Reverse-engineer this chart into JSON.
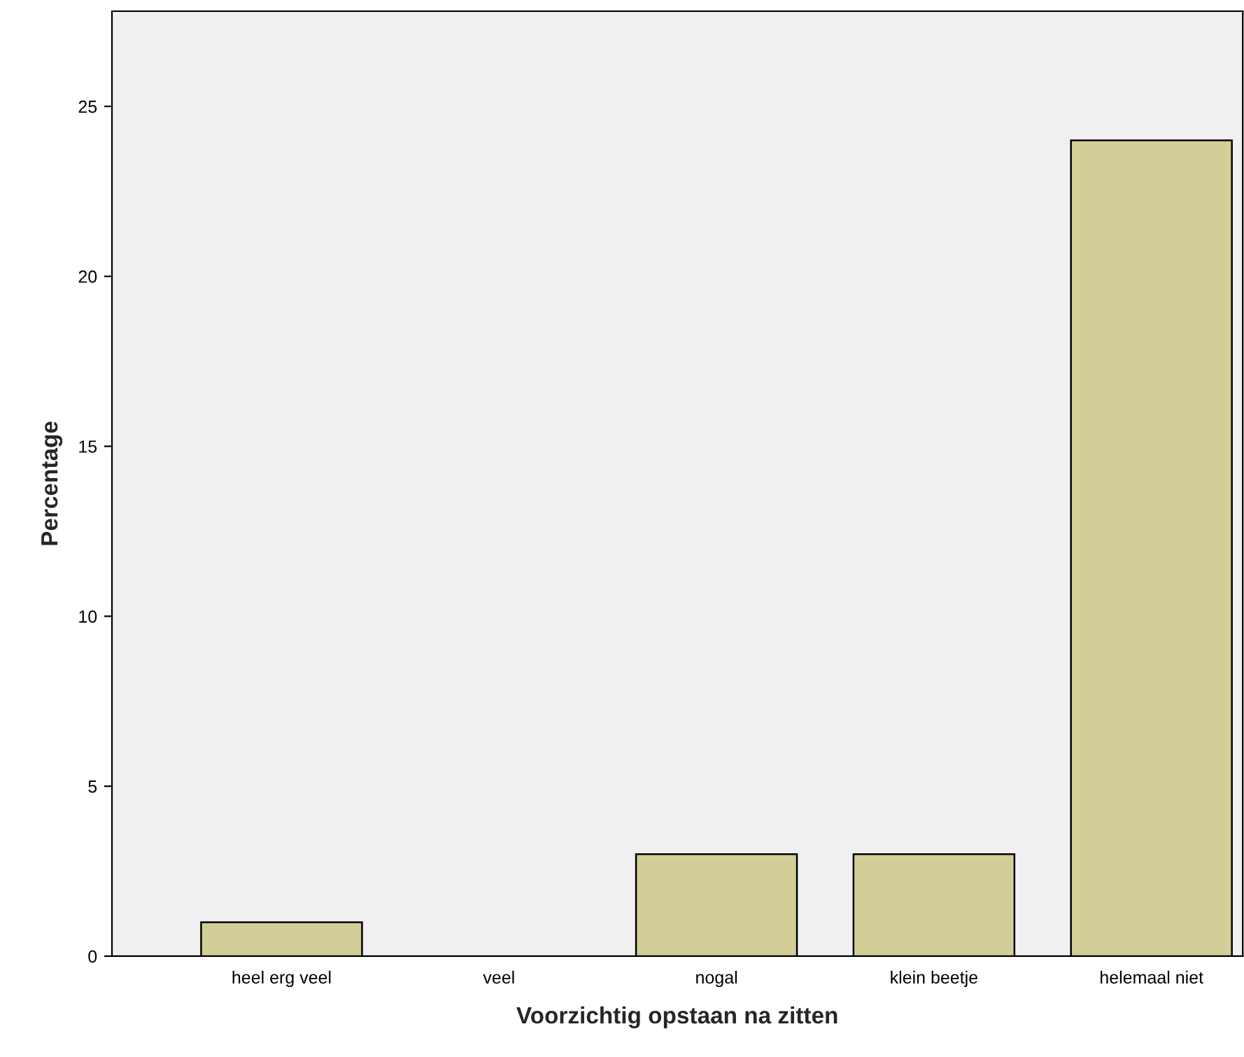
{
  "chart_data": {
    "type": "bar",
    "xlabel": "Voorzichtig opstaan na zitten",
    "ylabel": "Percentage",
    "categories": [
      "heel erg veel",
      "veel",
      "nogal",
      "klein beetje",
      "helemaal niet"
    ],
    "values": [
      1,
      0,
      3,
      3,
      24
    ],
    "color": "#d3ce97",
    "ylim": [
      0,
      27.8
    ],
    "yticks": [
      0,
      5,
      10,
      15,
      20,
      25
    ],
    "grid": false
  }
}
